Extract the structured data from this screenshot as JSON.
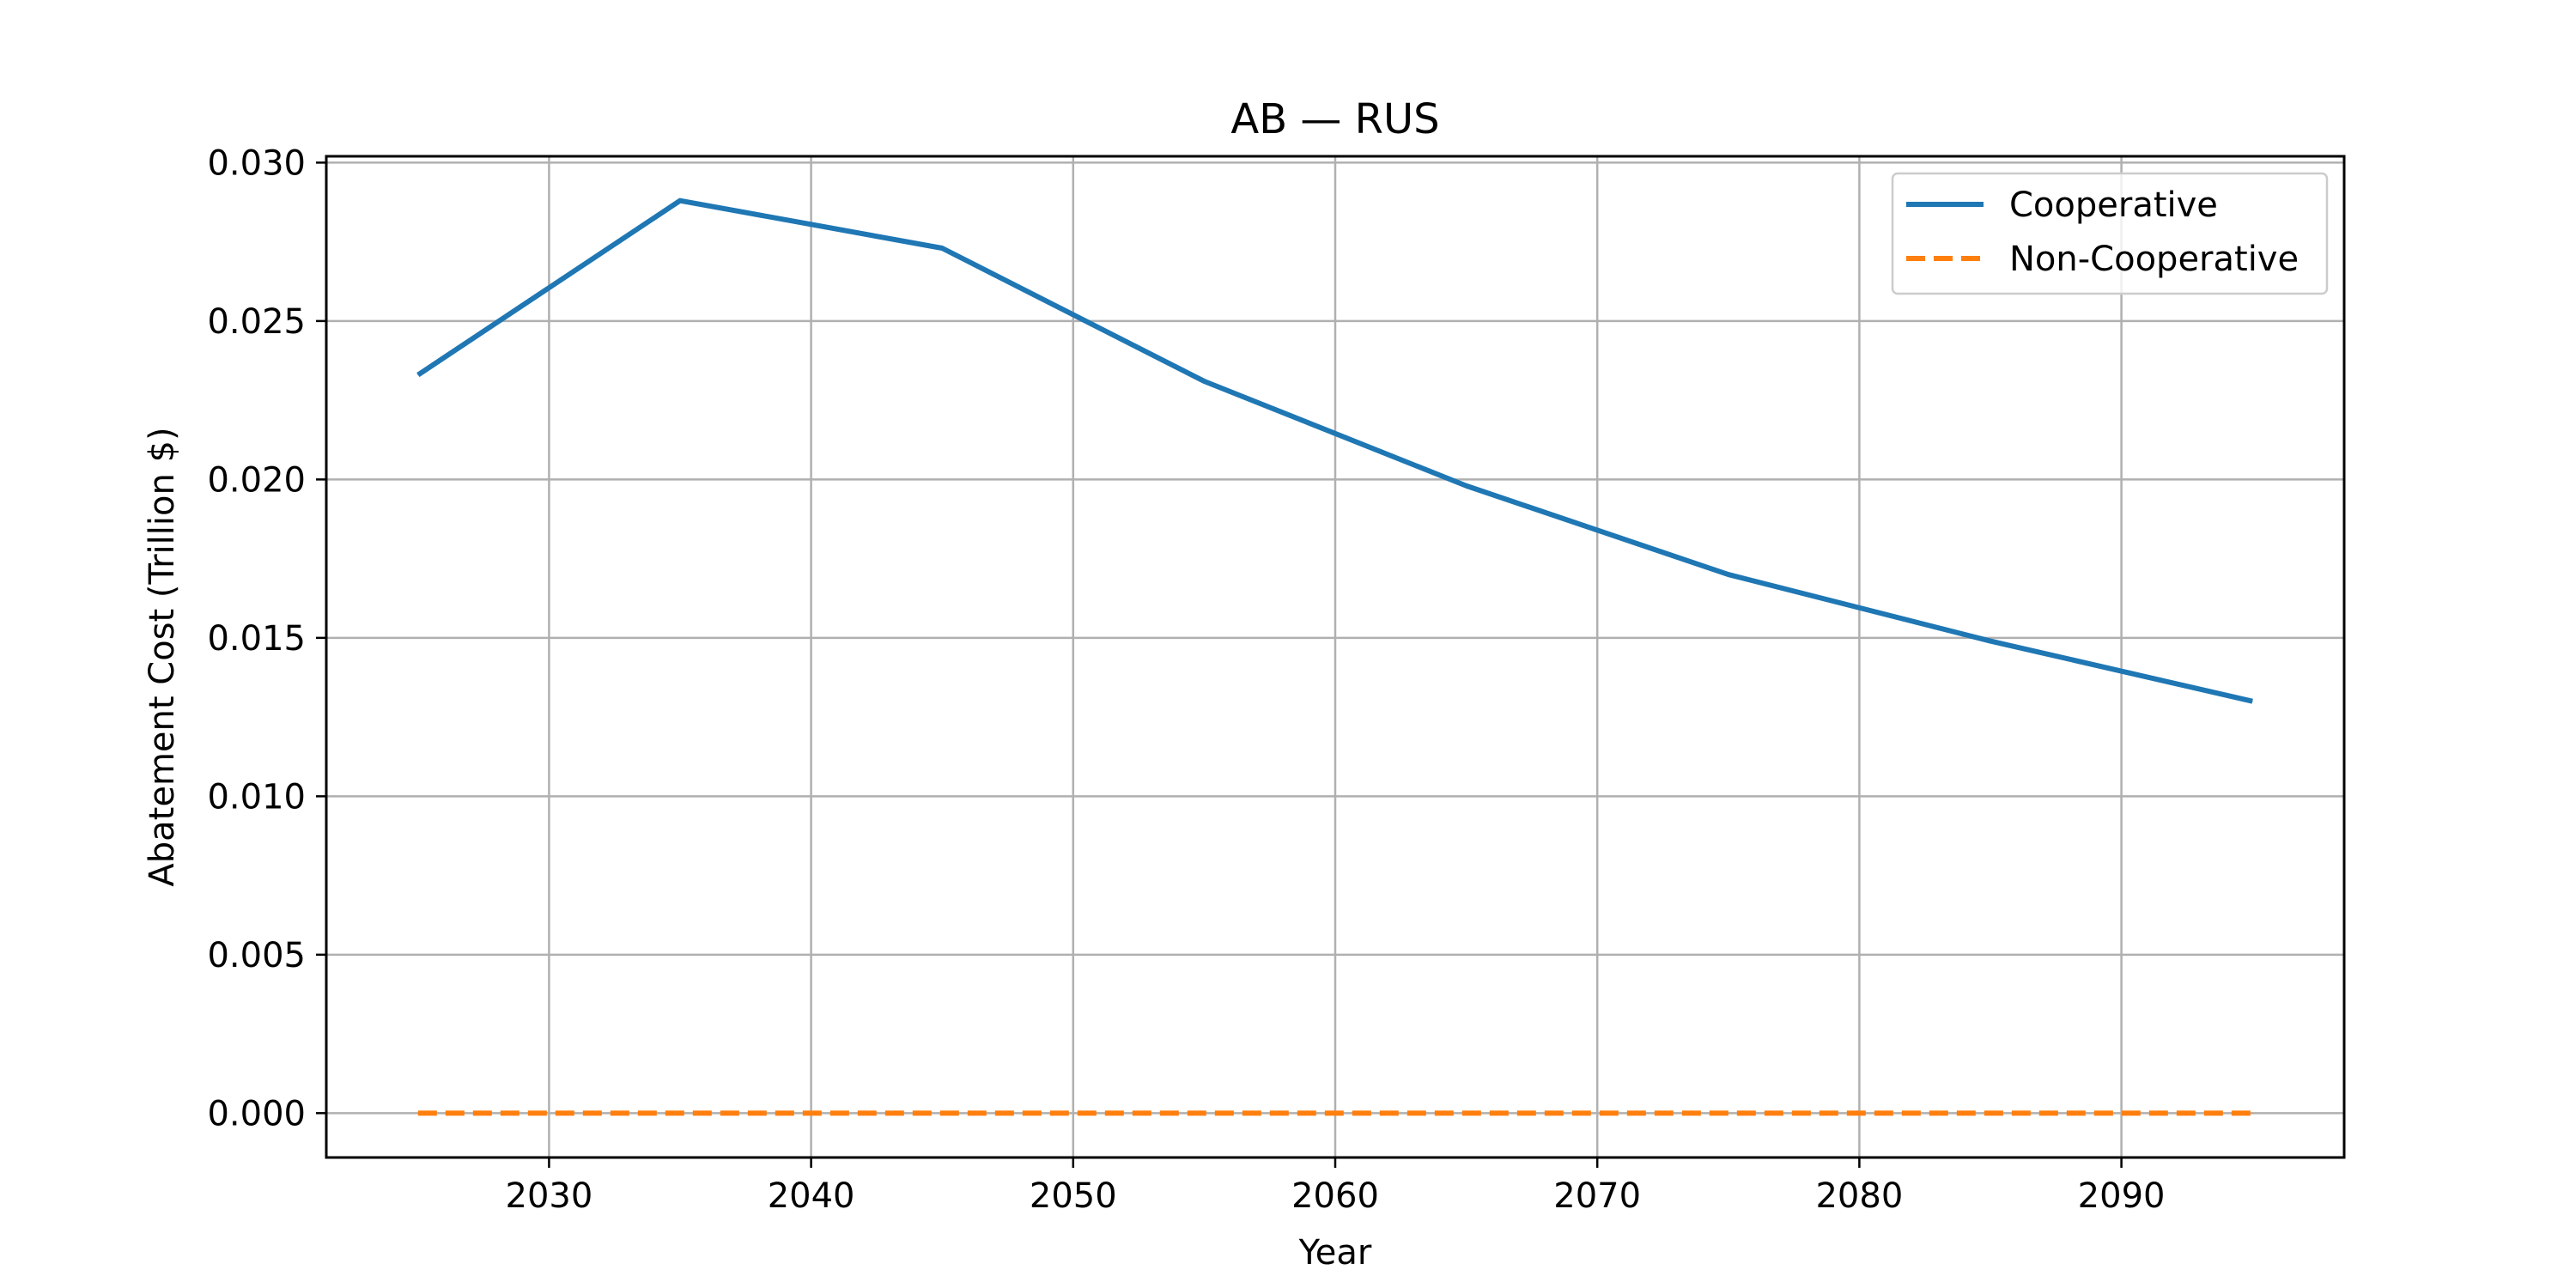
{
  "chart_data": {
    "type": "line",
    "title": "AB — RUS",
    "xlabel": "Year",
    "ylabel": "Abatement Cost (Trillion $)",
    "xlim": [
      2021.5,
      2098.5
    ],
    "ylim": [
      -0.0014,
      0.0302
    ],
    "x_ticks": [
      2030,
      2040,
      2050,
      2060,
      2070,
      2080,
      2090
    ],
    "y_ticks": [
      "0.000",
      "0.005",
      "0.010",
      "0.015",
      "0.020",
      "0.025",
      "0.030"
    ],
    "grid": true,
    "legend_position": "top-right",
    "x": [
      2025,
      2035,
      2045,
      2055,
      2065,
      2075,
      2085,
      2095
    ],
    "series": [
      {
        "name": "Cooperative",
        "color": "#1f77b4",
        "style": "solid",
        "values": [
          0.0233,
          0.0288,
          0.0273,
          0.0231,
          0.0198,
          0.017,
          0.0149,
          0.013
        ]
      },
      {
        "name": "Non-Cooperative",
        "color": "#ff7f0e",
        "style": "dashed",
        "values": [
          0.0,
          0.0,
          0.0,
          0.0,
          0.0,
          0.0,
          0.0,
          0.0
        ]
      }
    ]
  }
}
